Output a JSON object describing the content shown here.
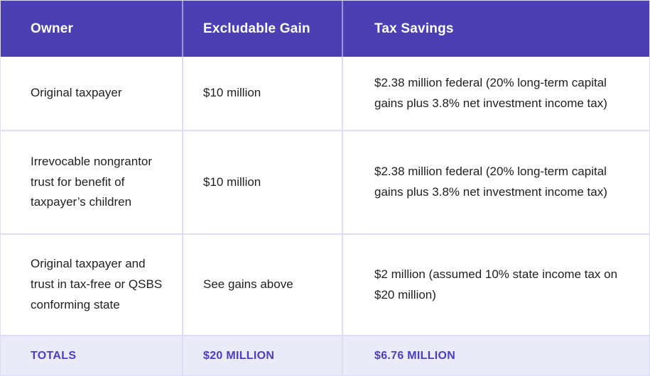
{
  "chart_data": {
    "type": "table",
    "title": "",
    "columns": {
      "owner": "Owner",
      "gain": "Excludable Gain",
      "savings": "Tax Savings"
    },
    "rows": [
      {
        "owner": "Original taxpayer",
        "gain": "$10 million",
        "savings": "$2.38 million federal (20% long-term capital gains plus 3.8% net investment income tax)"
      },
      {
        "owner": "Irrevocable nongrantor trust for benefit of taxpayer’s children",
        "gain": "$10 million",
        "savings": "$2.38 million federal (20% long-term capital gains plus 3.8% net investment income tax)"
      },
      {
        "owner": "Original taxpayer and trust in tax-free or QSBS conforming state",
        "gain": "See gains above",
        "savings": "$2 million (assumed 10% state income tax on $20 million)"
      }
    ],
    "totals": {
      "label": "TOTALS",
      "gain": "$20 MILLION",
      "savings": "$6.76 MILLION"
    }
  },
  "colors": {
    "header_bg": "#4A40B3",
    "totals_bg": "#EBEAF8",
    "accent_text": "#4A3FBE",
    "divider": "#DFDCF5",
    "body_text": "#1F1F1F"
  }
}
